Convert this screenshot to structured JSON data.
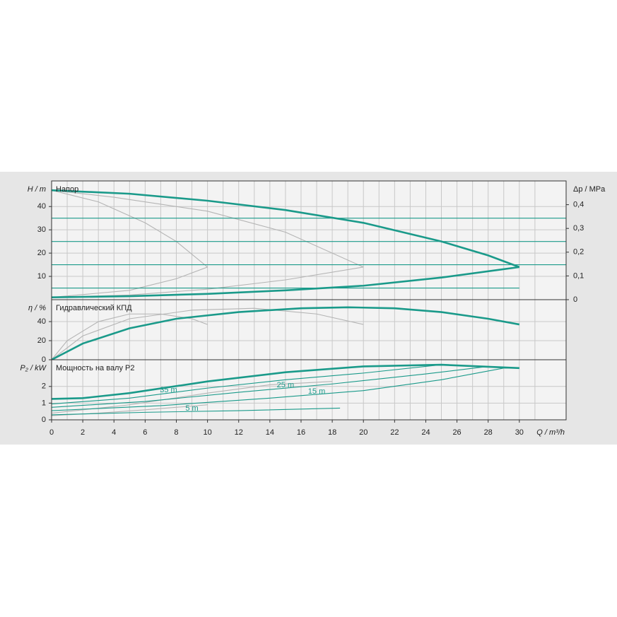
{
  "chart_data": [
    {
      "type": "line",
      "title": "Напор",
      "ylabel": "H / m",
      "ylim": [
        0,
        51
      ],
      "yticks": [
        10,
        20,
        30,
        40
      ],
      "y2label": "Δp / MPa",
      "y2lim": [
        0,
        0.5
      ],
      "y2ticks": [
        0,
        {
          "value": 0.1,
          "label": "0,1"
        },
        {
          "value": 0.2,
          "label": "0,2"
        },
        {
          "value": 0.3,
          "label": "0,3"
        },
        {
          "value": 0.4,
          "label": "0,4"
        }
      ],
      "series": [
        {
          "color": "#b4b4b4",
          "style": "thin",
          "x": [
            0,
            3,
            6,
            8,
            10
          ],
          "values": [
            47,
            42,
            33,
            25,
            14
          ]
        },
        {
          "color": "#b4b4b4",
          "style": "thin",
          "x": [
            0,
            4,
            10,
            15,
            20
          ],
          "values": [
            47,
            44,
            38,
            29,
            14
          ]
        },
        {
          "color": "#b4b4b4",
          "style": "thin",
          "x": [
            0,
            5,
            8,
            10
          ],
          "values": [
            1,
            4,
            9,
            14
          ]
        },
        {
          "color": "#b4b4b4",
          "style": "thin",
          "x": [
            0,
            5,
            10,
            15,
            20
          ],
          "values": [
            1,
            2,
            4.5,
            8.5,
            14
          ]
        },
        {
          "color": "#1a9a8a",
          "style": "thin",
          "x": [
            0,
            33
          ],
          "values": [
            35,
            35
          ]
        },
        {
          "color": "#1a9a8a",
          "style": "thin",
          "x": [
            0,
            33
          ],
          "values": [
            25,
            25
          ]
        },
        {
          "color": "#1a9a8a",
          "style": "thin",
          "x": [
            0,
            33
          ],
          "values": [
            15,
            15
          ]
        },
        {
          "color": "#1a9a8a",
          "style": "thin",
          "x": [
            0,
            30
          ],
          "values": [
            5,
            5
          ]
        },
        {
          "color": "#1a9a8a",
          "style": "bold",
          "x": [
            0,
            5,
            10,
            15,
            20,
            25,
            28,
            30
          ],
          "values": [
            47,
            45.5,
            42.5,
            38.5,
            33,
            25,
            19,
            14
          ]
        },
        {
          "color": "#1a9a8a",
          "style": "bold",
          "x": [
            0,
            5,
            10,
            15,
            20,
            25,
            30
          ],
          "values": [
            1,
            1.5,
            2.5,
            4,
            6,
            9.5,
            14
          ]
        }
      ]
    },
    {
      "type": "line",
      "title": "Гидравлический КПД",
      "ylabel": "η / %",
      "ylim": [
        0,
        63
      ],
      "yticks": [
        0,
        20,
        40
      ],
      "series": [
        {
          "color": "#b4b4b4",
          "style": "thin",
          "x": [
            0,
            1,
            3,
            5,
            7,
            9,
            10
          ],
          "values": [
            0,
            20,
            40,
            48,
            48,
            43,
            37
          ]
        },
        {
          "color": "#b4b4b4",
          "style": "thin",
          "x": [
            0,
            2,
            5,
            9,
            13,
            17,
            20
          ],
          "values": [
            0,
            25,
            43,
            52,
            54,
            48,
            37
          ]
        },
        {
          "color": "#1a9a8a",
          "style": "bold",
          "x": [
            0,
            2,
            5,
            8,
            12,
            16,
            19,
            22,
            25,
            28,
            30
          ],
          "values": [
            0,
            17,
            33,
            43,
            50,
            54,
            55,
            54,
            50,
            43,
            37
          ]
        }
      ]
    },
    {
      "type": "line",
      "title": "Мощность на валу P2",
      "ylabel": "P₂ / kW",
      "ylim": [
        0,
        3.6
      ],
      "yticks": [
        0,
        1,
        2
      ],
      "xlabel": "Q / m³/h",
      "xlim": [
        0,
        33
      ],
      "xticks": [
        0,
        2,
        4,
        6,
        8,
        10,
        12,
        14,
        16,
        18,
        20,
        22,
        24,
        26,
        28,
        30
      ],
      "series": [
        {
          "color": "#b4b4b4",
          "style": "thin",
          "x": [
            0,
            5,
            10,
            14,
            18
          ],
          "values": [
            0.4,
            0.9,
            1.6,
            2.1,
            2.3
          ]
        },
        {
          "color": "#b4b4b4",
          "style": "thin",
          "x": [
            0,
            3,
            6,
            10
          ],
          "values": [
            0.25,
            0.4,
            0.6,
            0.9
          ]
        },
        {
          "name": "35 m",
          "color": "#1a9a8a",
          "style": "thin",
          "x": [
            0,
            5,
            10,
            15,
            20,
            25
          ],
          "values": [
            0.95,
            1.3,
            1.9,
            2.4,
            2.8,
            3.3
          ]
        },
        {
          "name": "25 m",
          "color": "#1a9a8a",
          "style": "thin",
          "x": [
            0,
            6,
            12,
            18,
            24,
            28,
            30
          ],
          "values": [
            0.75,
            1.1,
            1.65,
            2.15,
            2.75,
            3.2,
            3.1
          ]
        },
        {
          "name": "15 m",
          "color": "#1a9a8a",
          "style": "thin",
          "x": [
            0,
            7,
            14,
            20,
            25,
            29,
            30
          ],
          "values": [
            0.55,
            0.85,
            1.3,
            1.75,
            2.4,
            3.1,
            3.1
          ]
        },
        {
          "name": "5 m",
          "color": "#1a9a8a",
          "style": "thin",
          "x": [
            0,
            6,
            12,
            18.5
          ],
          "values": [
            0.3,
            0.45,
            0.55,
            0.7
          ]
        },
        {
          "color": "#1a9a8a",
          "style": "bold",
          "x": [
            0,
            2,
            5,
            10,
            15,
            20,
            25,
            30
          ],
          "values": [
            1.25,
            1.3,
            1.6,
            2.3,
            2.85,
            3.2,
            3.3,
            3.1
          ]
        }
      ]
    }
  ]
}
